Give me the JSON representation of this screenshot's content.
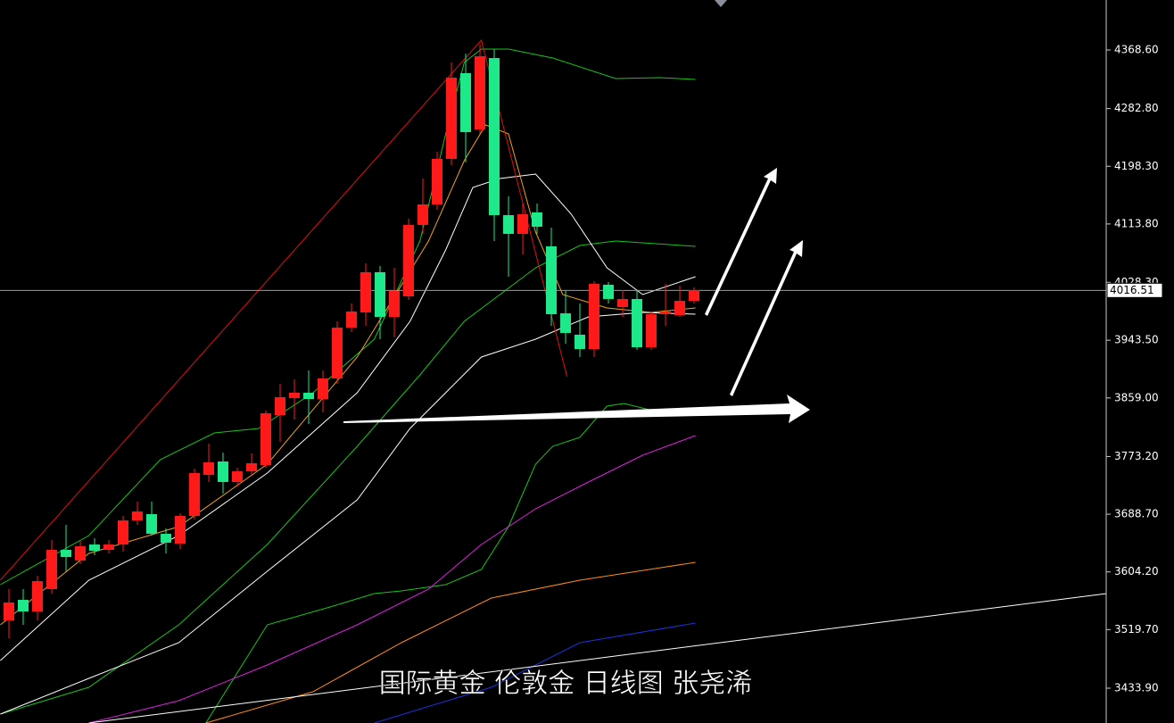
{
  "chart_data": {
    "type": "candlestick",
    "title": "国际黄金 伦敦金 日线图 张尧浠",
    "up_color": "#ff1a1a",
    "down_color": "#1de98b",
    "xlim": [
      -0.625,
      76.875
    ],
    "ylim": [
      3382.9,
      4441.8
    ],
    "yticks": [
      {
        "value": 4368.6,
        "label": "4368.60"
      },
      {
        "value": 4282.8,
        "label": "4282.80"
      },
      {
        "value": 4198.3,
        "label": "4198.30"
      },
      {
        "value": 4113.8,
        "label": "4113.80"
      },
      {
        "value": 4028.3,
        "label": "4028.30"
      },
      {
        "value": 3943.5,
        "label": "3943.50"
      },
      {
        "value": 3859.0,
        "label": "3859.00"
      },
      {
        "value": 3773.2,
        "label": "3773.20"
      },
      {
        "value": 3688.7,
        "label": "3688.70"
      },
      {
        "value": 3604.2,
        "label": "3604.20"
      },
      {
        "value": 3519.7,
        "label": "3519.70"
      },
      {
        "value": 3433.9,
        "label": "3433.90"
      }
    ],
    "current_price": 4016.51,
    "open": [
      3533.2,
      3563.3,
      3546.3,
      3579.0,
      3636.5,
      3620.8,
      3644.3,
      3636.5,
      3644.3,
      3679.6,
      3688.8,
      3660.0,
      3645.7,
      3686.2,
      3746.3,
      3765.9,
      3735.9,
      3751.5,
      3760.7,
      3833.9,
      3858.7,
      3866.6,
      3857.4,
      3887.5,
      3962.0,
      3984.2,
      4043.1,
      3977.7,
      4007.8,
      4112.4,
      4142.4,
      4209.1,
      4334.6,
      4252.2,
      4356.8,
      4126.7,
      4099.3,
      4130.7,
      4081.0,
      3982.9,
      3951.6,
      3930.6,
      4024.8,
      3992.1,
      4003.9,
      3933.3,
      3981.6,
      3980.3,
      4001.2
    ],
    "high": [
      3579.0,
      3579.0,
      3598.6,
      3650.9,
      3673.1,
      3650.9,
      3653.5,
      3650.9,
      3686.2,
      3707.1,
      3707.1,
      3667.9,
      3690.1,
      3755.5,
      3792.1,
      3779.0,
      3756.8,
      3777.7,
      3840.4,
      3879.7,
      3886.2,
      3899.3,
      3899.3,
      3971.2,
      3997.3,
      4056.1,
      4052.2,
      4049.6,
      4121.5,
      4180.3,
      4219.6,
      4350.3,
      4363.4,
      4376.4,
      4369.9,
      4154.2,
      4143.7,
      4143.7,
      4108.4,
      4016.9,
      3997.3,
      4030.0,
      4028.7,
      4016.9,
      4016.9,
      3984.2,
      4026.1,
      4023.5,
      4020.9
    ],
    "low": [
      3507.1,
      3526.7,
      3533.2,
      3572.4,
      3605.1,
      3615.6,
      3628.7,
      3631.3,
      3633.9,
      3673.1,
      3657.4,
      3631.3,
      3637.8,
      3681.0,
      3735.9,
      3718.9,
      3729.3,
      3746.3,
      3756.8,
      3794.7,
      3827.4,
      3820.8,
      3837.8,
      3879.7,
      3955.5,
      3964.6,
      3945.0,
      3947.6,
      4002.5,
      4099.3,
      4134.6,
      4199.9,
      4203.9,
      4245.7,
      4088.8,
      4036.5,
      4069.2,
      4099.3,
      3964.6,
      3938.5,
      3918.9,
      3918.9,
      3997.3,
      3977.7,
      3929.3,
      3929.3,
      3964.6,
      3977.7,
      3997.3
    ],
    "close": [
      3559.4,
      3546.3,
      3590.7,
      3636.5,
      3626.0,
      3641.7,
      3635.2,
      3644.3,
      3679.6,
      3692.7,
      3660.0,
      3647.0,
      3686.2,
      3748.9,
      3764.6,
      3735.9,
      3751.5,
      3763.3,
      3836.5,
      3860.1,
      3866.6,
      3857.4,
      3887.5,
      3962.0,
      3985.6,
      4043.1,
      3977.7,
      4015.6,
      4112.4,
      4142.4,
      4209.1,
      4328.1,
      4248.3,
      4359.4,
      4126.7,
      4099.3,
      4128.0,
      4109.7,
      3981.6,
      3954.2,
      3930.6,
      4026.1,
      4003.9,
      4003.9,
      3933.3,
      3981.6,
      3985.6,
      4001.2,
      4016.9
    ],
    "lines": [
      {
        "color": "#19c419",
        "x": [
          -0.6,
          5.6,
          10.6,
          14.4,
          17.5,
          21.3,
          25.6,
          28.8,
          30.6,
          31.9,
          33.1,
          35,
          38.1,
          42.5,
          45.6,
          48.1
        ],
        "values": [
          3585.5,
          3657.4,
          3768.5,
          3807.8,
          3814.3,
          3866.6,
          3945.0,
          4088.8,
          4245.7,
          4350.3,
          4369.9,
          4369.9,
          4356.8,
          4326.8,
          4328.1,
          4325.4
        ]
      },
      {
        "color": "#19c419",
        "x": [
          -0.6,
          5.6,
          11.9,
          18.1,
          24.4,
          28.8,
          31.9,
          34.4,
          36.9,
          40,
          42.5,
          48.1
        ],
        "values": [
          3396.0,
          3435.2,
          3526.7,
          3644.3,
          3788.2,
          3892.7,
          3971.2,
          4010.4,
          4049.6,
          4082.3,
          4088.8,
          4081.0
        ]
      },
      {
        "color": "#19c419",
        "x": [
          13.8,
          18.1,
          22.5,
          25.6,
          27.5,
          30.6,
          33.1,
          35,
          36.9,
          38.1,
          40,
          41.9,
          43.1,
          45.6,
          48.1
        ],
        "values": [
          3382.9,
          3526.7,
          3552.8,
          3572.4,
          3576.4,
          3585.5,
          3607.8,
          3670.5,
          3762.0,
          3788.2,
          3801.2,
          3847.0,
          3850.9,
          3837.8,
          3840.4
        ]
      },
      {
        "color": "#ffffff",
        "x": [
          -0.6,
          5.6,
          11.9,
          18.1,
          24.4,
          28.1,
          30.6,
          32.5,
          34.4,
          36.9,
          39.4,
          41.9,
          44.4,
          48.1
        ],
        "values": [
          3474.4,
          3592.1,
          3657.4,
          3748.9,
          3866.6,
          3971.2,
          4075.8,
          4167.3,
          4180.3,
          4186.9,
          4128.0,
          4049.6,
          4010.4,
          4036.5
        ]
      },
      {
        "color": "#ffffff",
        "x": [
          -0.6,
          5.6,
          11.9,
          18.1,
          24.4,
          28.1,
          30.6,
          33.1,
          36.9,
          40.6,
          44.4,
          48.1
        ],
        "values": [
          3396.0,
          3448.3,
          3500.6,
          3605.1,
          3709.7,
          3814.3,
          3866.6,
          3918.9,
          3945.0,
          3977.7,
          3984.2,
          3981.6
        ]
      },
      {
        "color": "#e020e0",
        "x": [
          5.6,
          11.9,
          18.1,
          24.4,
          29.4,
          33.1,
          36.9,
          40.6,
          44.4,
          48.1
        ],
        "values": [
          3382.9,
          3415.6,
          3467.9,
          3526.7,
          3579.0,
          3644.3,
          3696.6,
          3735.9,
          3775.1,
          3803.8
        ]
      },
      {
        "color": "#ff8c1a",
        "x": [
          13.8,
          21.3,
          27.5,
          33.8,
          40,
          48.1
        ],
        "values": [
          3382.9,
          3428.6,
          3500.6,
          3565.9,
          3592.1,
          3618.2
        ]
      },
      {
        "color": "#2030e0",
        "x": [
          25.6,
          33.8,
          40,
          48.1
        ],
        "values": [
          3382.9,
          3435.2,
          3500.6,
          3529.3
        ]
      },
      {
        "color": "#f0a020",
        "x": [
          -0.6,
          5.6,
          11.9,
          18.1,
          24.4,
          29.4,
          31.9,
          33.4,
          35,
          36.9,
          38.8,
          41.9,
          45,
          48.1
        ],
        "values": [
          3526.7,
          3631.3,
          3670.5,
          3762.0,
          3918.9,
          4088.8,
          4206.5,
          4258.8,
          4245.7,
          4101.9,
          4010.4,
          3990.8,
          3984.2,
          3990.8
        ]
      },
      {
        "color": "#e01010",
        "x": [
          -0.6,
          33.1,
          39.1
        ],
        "values": [
          3592.1,
          4383.0,
          3890.1
        ]
      },
      {
        "color": "#ffffff",
        "x": [
          5.6,
          76.9
        ],
        "values": [
          3382.9,
          3572.4
        ]
      }
    ]
  }
}
